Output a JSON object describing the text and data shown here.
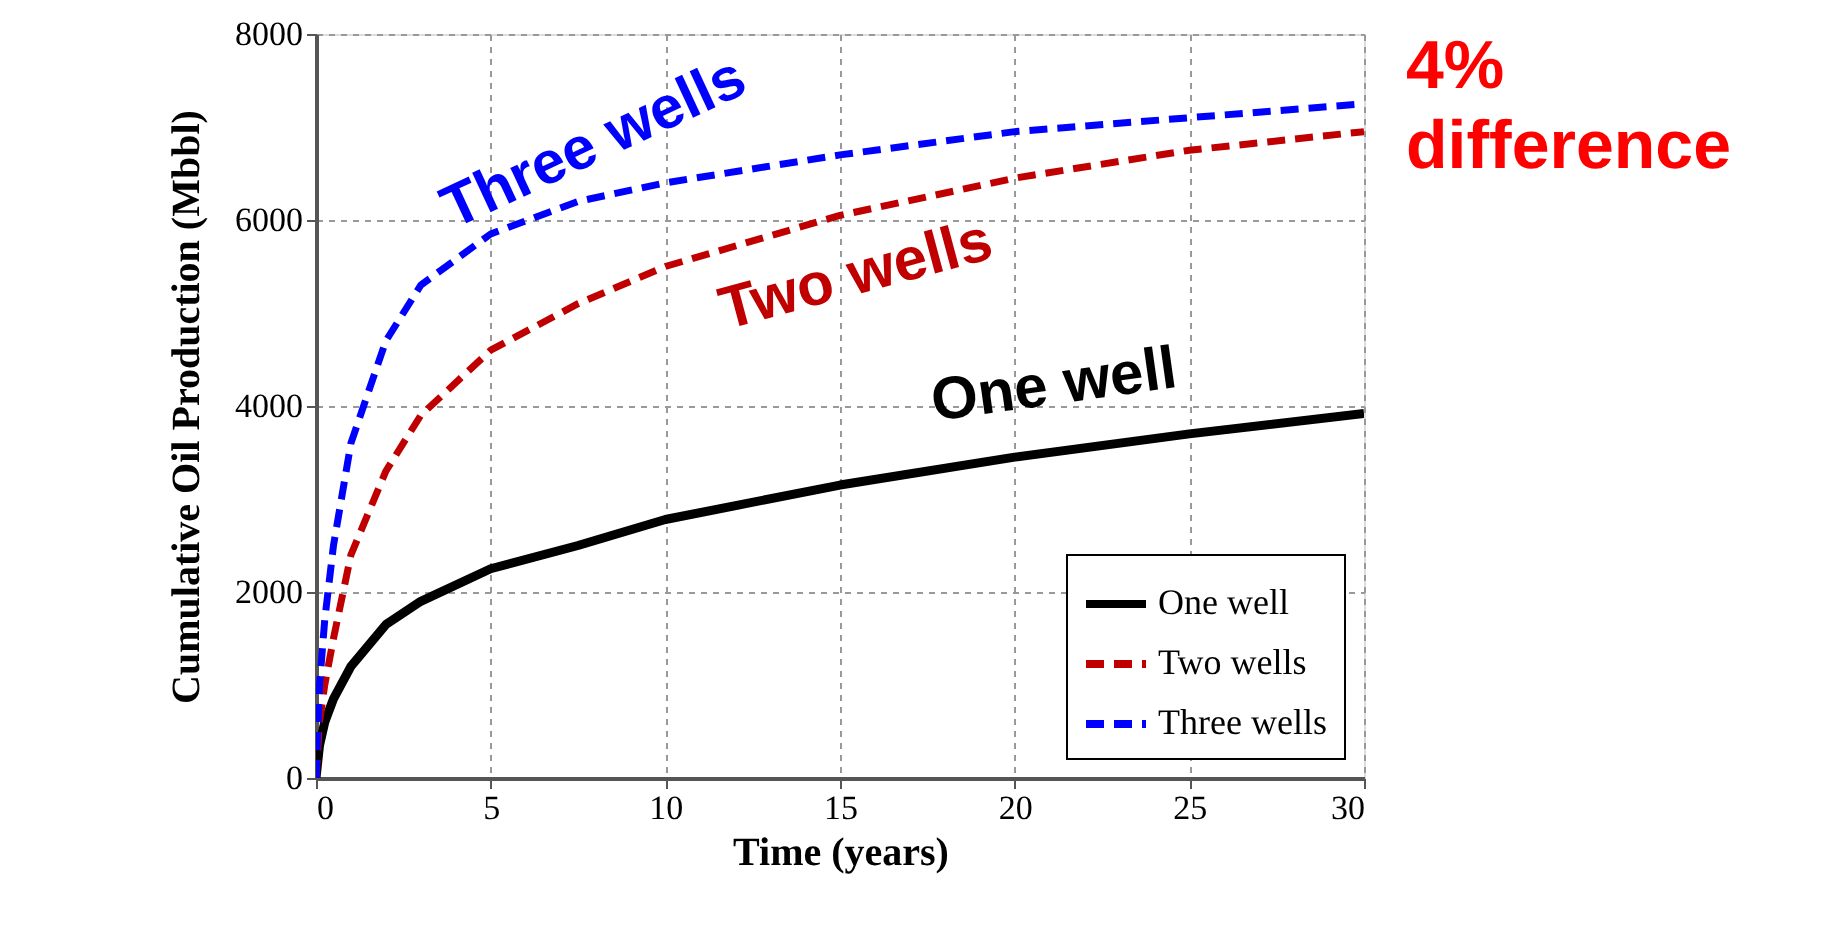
{
  "chart_data": {
    "type": "line",
    "xlabel": "Time  (years)",
    "ylabel": "Cumulative Oil Production (Mbbl)",
    "xlim": [
      0,
      30
    ],
    "ylim": [
      0,
      8000
    ],
    "xticks": [
      0,
      5,
      10,
      15,
      20,
      25,
      30
    ],
    "yticks": [
      0,
      2000,
      4000,
      6000,
      8000
    ],
    "grid": true,
    "legend": "bottom right",
    "x": [
      0,
      0.1,
      0.25,
      0.5,
      1,
      2,
      3,
      5,
      7.5,
      10,
      15,
      20,
      25,
      30
    ],
    "series": [
      {
        "name": "One well",
        "color": "#000000",
        "line_style": "solid",
        "values": [
          0,
          350,
          600,
          850,
          1200,
          1650,
          1900,
          2250,
          2500,
          2780,
          3150,
          3450,
          3700,
          3920
        ]
      },
      {
        "name": "Two wells",
        "color": "#c00000",
        "line_style": "dashed",
        "values": [
          0,
          600,
          1000,
          1500,
          2400,
          3300,
          3900,
          4600,
          5100,
          5500,
          6050,
          6450,
          6750,
          6950
        ]
      },
      {
        "name": "Three wells",
        "color": "#0000ff",
        "line_style": "dashed",
        "values": [
          0,
          1000,
          1700,
          2500,
          3600,
          4700,
          5300,
          5850,
          6200,
          6400,
          6700,
          6950,
          7100,
          7250
        ]
      }
    ],
    "annotations": [
      "One well",
      "Two wells",
      "Three wells",
      "4% difference"
    ]
  }
}
